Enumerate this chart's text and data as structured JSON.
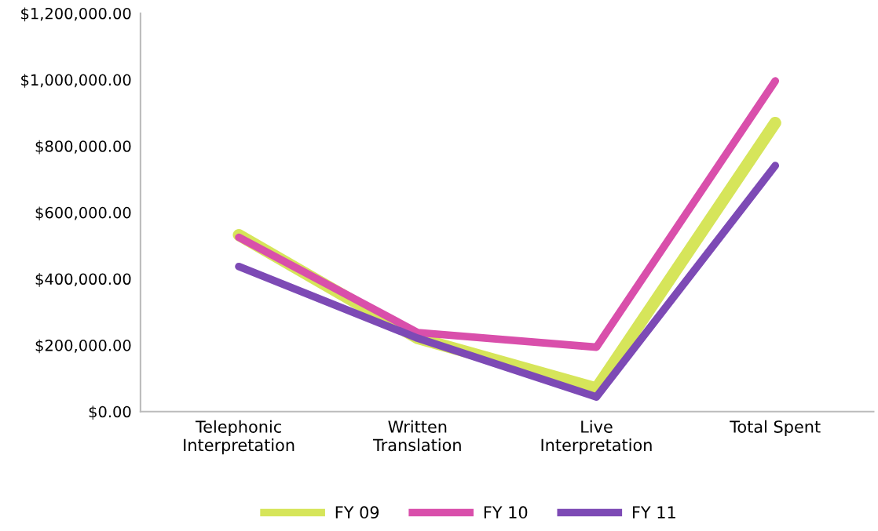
{
  "chart_data": {
    "type": "line",
    "categories": [
      "Telephonic\nInterpretation",
      "Written\nTranslation",
      "Live\nInterpretation",
      "Total Spent"
    ],
    "series": [
      {
        "name": "FY 09",
        "color": "#d6e55a",
        "values": [
          532000,
          221000,
          70000,
          870000
        ]
      },
      {
        "name": "FY 10",
        "color": "#d94fab",
        "values": [
          525000,
          238000,
          194000,
          996000
        ]
      },
      {
        "name": "FY 11",
        "color": "#7d4ab5",
        "values": [
          437000,
          221000,
          44000,
          741000
        ]
      }
    ],
    "ylim": [
      0,
      1200000
    ],
    "yticks": [
      {
        "value": 0,
        "label": "$0.00"
      },
      {
        "value": 200000,
        "label": "$200,000.00"
      },
      {
        "value": 400000,
        "label": "$400,000.00"
      },
      {
        "value": 600000,
        "label": "$600,000.00"
      },
      {
        "value": 800000,
        "label": "$800,000.00"
      },
      {
        "value": 1000000,
        "label": "$1,000,000.00"
      },
      {
        "value": 1200000,
        "label": "$1,200,000.00"
      }
    ],
    "grid": false,
    "legend": "bottom",
    "marker": "none",
    "line_style": "solid"
  }
}
